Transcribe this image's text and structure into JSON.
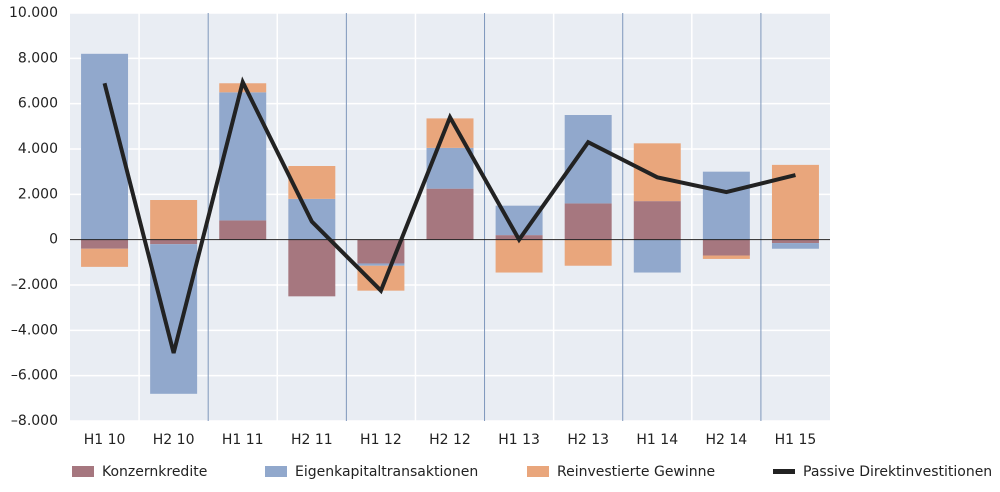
{
  "chart_data": {
    "type": "stacked-bar-line",
    "categories": [
      "H1 10",
      "H2 10",
      "H1 11",
      "H2 11",
      "H1 12",
      "H2 12",
      "H1 13",
      "H2 13",
      "H1 14",
      "H2 14",
      "H1 15"
    ],
    "series": [
      {
        "name": "Konzernkredite",
        "color": "#a6777f",
        "type": "bar",
        "values": [
          -400,
          -200,
          850,
          -2500,
          -1050,
          2250,
          200,
          1600,
          1700,
          -700,
          -150
        ]
      },
      {
        "name": "Eigenkapitaltransaktionen",
        "color": "#91a8cc",
        "type": "bar",
        "values": [
          8200,
          -6600,
          5650,
          1800,
          -100,
          1800,
          1300,
          3900,
          -1450,
          3000,
          -250
        ]
      },
      {
        "name": "Reinvestierte Gewinne",
        "color": "#e9a67c",
        "type": "bar",
        "values": [
          -800,
          1750,
          400,
          1450,
          -1100,
          1300,
          -1450,
          -1150,
          2550,
          -150,
          3300
        ]
      },
      {
        "name": "Passive Direktinvestitionen",
        "color": "#222222",
        "type": "line",
        "values": [
          6900,
          -5000,
          6950,
          800,
          -2250,
          5400,
          0,
          4300,
          2750,
          2100,
          2850
        ]
      }
    ],
    "ylim": [
      -8000,
      10000
    ],
    "yticks": [
      {
        "value": -8000,
        "label": "–8.000"
      },
      {
        "value": -6000,
        "label": "–6.000"
      },
      {
        "value": -4000,
        "label": "–4.000"
      },
      {
        "value": -2000,
        "label": "–2.000"
      },
      0,
      {
        "value": 2000,
        "label": "2.000"
      },
      {
        "value": 4000,
        "label": "4.000"
      },
      {
        "value": 6000,
        "label": "6.000"
      },
      {
        "value": 8000,
        "label": "8.000"
      },
      {
        "value": 10000,
        "label": "10.000"
      }
    ],
    "grid": true,
    "legend": "bottom"
  }
}
